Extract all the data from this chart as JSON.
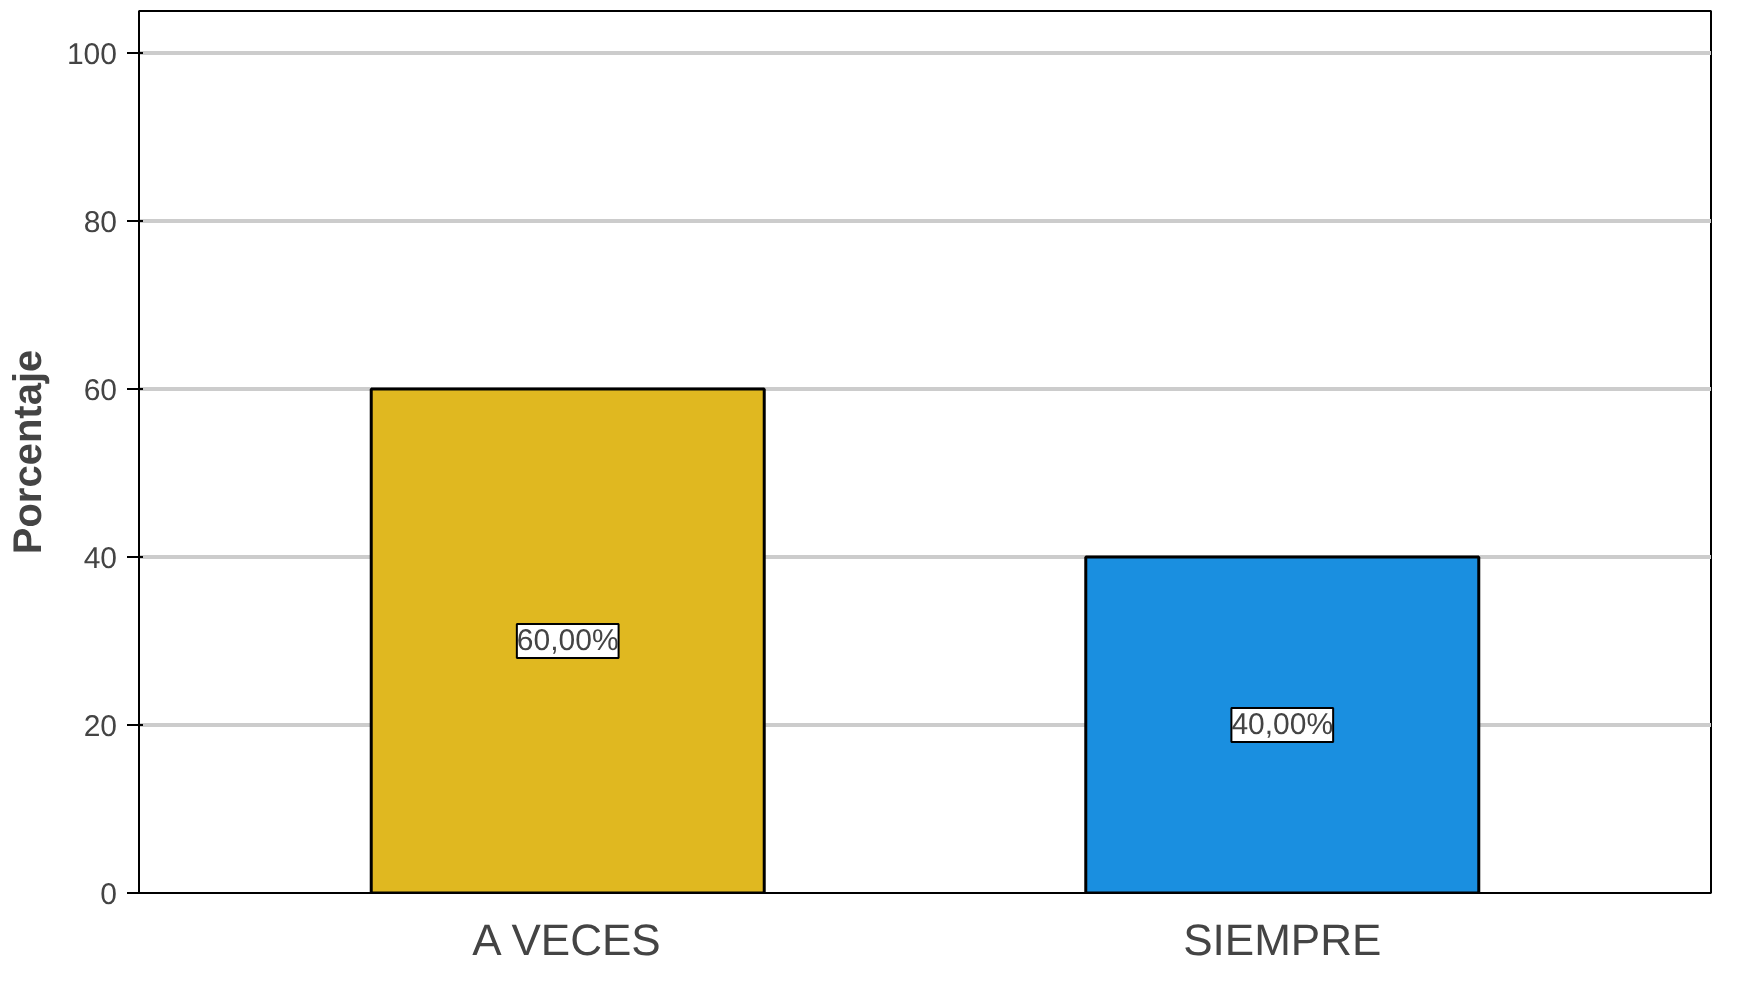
{
  "chart_data": {
    "type": "bar",
    "ylabel": "Porcentaje",
    "categories": [
      "A VECES",
      "SIEMPRE"
    ],
    "values": [
      60,
      40
    ],
    "colors": [
      "#e0b820",
      "#1a8fe0"
    ],
    "value_labels": [
      "60,00%",
      "40,00%"
    ],
    "ylim": [
      0,
      105
    ],
    "yticks": [
      0,
      20,
      40,
      60,
      80,
      100
    ],
    "grid": "y"
  }
}
